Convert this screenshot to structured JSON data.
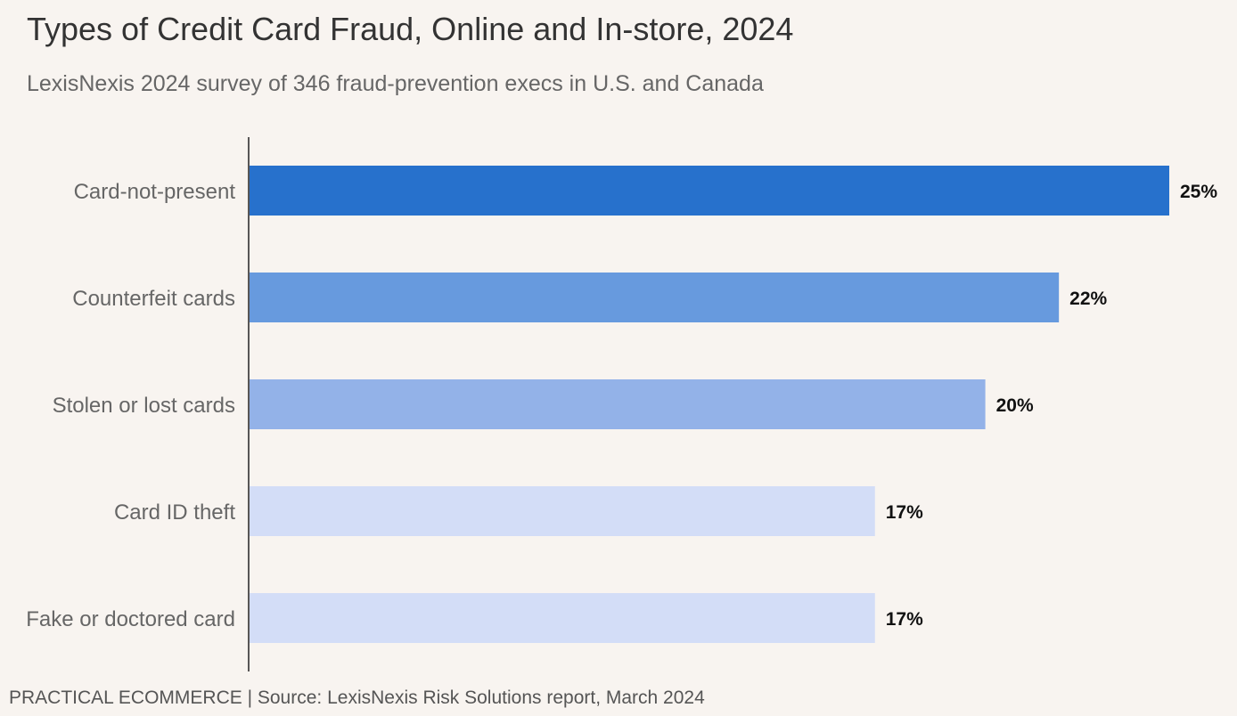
{
  "chart_data": {
    "type": "bar",
    "orientation": "horizontal",
    "title": "Types of Credit Card Fraud, Online and In-store, 2024",
    "subtitle": "LexisNexis 2024 survey of 346 fraud-prevention execs in U.S. and Canada",
    "categories": [
      "Card-not-present",
      "Counterfeit cards",
      "Stolen or lost cards",
      "Card ID theft",
      "Fake or doctored card"
    ],
    "values": [
      25,
      22,
      20,
      17,
      17
    ],
    "value_labels": [
      "25%",
      "22%",
      "20%",
      "17%",
      "17%"
    ],
    "colors": [
      "#2771cc",
      "#679ade",
      "#93b2e8",
      "#d3ddf7",
      "#d3ddf7"
    ],
    "xlim": [
      0,
      25
    ],
    "grid": false,
    "legend": "none"
  },
  "footer": "PRACTICAL ECOMMERCE | Source: LexisNexis Risk Solutions report, March 2024"
}
